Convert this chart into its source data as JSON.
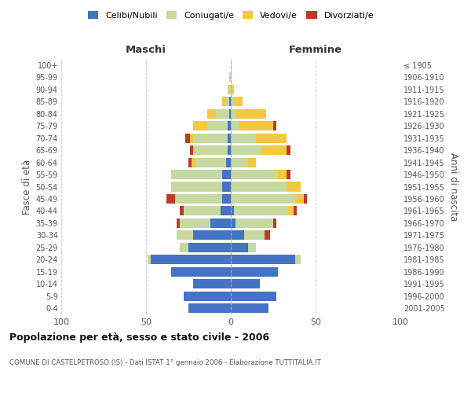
{
  "age_groups": [
    "0-4",
    "5-9",
    "10-14",
    "15-19",
    "20-24",
    "25-29",
    "30-34",
    "35-39",
    "40-44",
    "45-49",
    "50-54",
    "55-59",
    "60-64",
    "65-69",
    "70-74",
    "75-79",
    "80-84",
    "85-89",
    "90-94",
    "95-99",
    "100+"
  ],
  "birth_years": [
    "2001-2005",
    "1996-2000",
    "1991-1995",
    "1986-1990",
    "1981-1985",
    "1976-1980",
    "1971-1975",
    "1966-1970",
    "1961-1965",
    "1956-1960",
    "1951-1955",
    "1946-1950",
    "1941-1945",
    "1936-1940",
    "1931-1935",
    "1926-1930",
    "1921-1925",
    "1916-1920",
    "1911-1915",
    "1906-1910",
    "≤ 1905"
  ],
  "maschi": {
    "celibi": [
      25,
      28,
      22,
      35,
      47,
      25,
      22,
      12,
      6,
      5,
      5,
      5,
      3,
      2,
      2,
      2,
      1,
      1,
      0,
      0,
      0
    ],
    "coniugati": [
      0,
      0,
      0,
      0,
      2,
      5,
      10,
      18,
      22,
      28,
      30,
      30,
      18,
      20,
      20,
      12,
      8,
      2,
      2,
      1,
      0
    ],
    "vedovi": [
      0,
      0,
      0,
      0,
      0,
      0,
      0,
      0,
      0,
      0,
      0,
      0,
      2,
      0,
      2,
      8,
      5,
      2,
      0,
      0,
      0
    ],
    "divorziati": [
      0,
      0,
      0,
      0,
      0,
      0,
      0,
      2,
      2,
      5,
      0,
      0,
      2,
      2,
      3,
      0,
      0,
      0,
      0,
      0,
      0
    ]
  },
  "femmine": {
    "nubili": [
      22,
      27,
      17,
      28,
      38,
      10,
      8,
      3,
      2,
      0,
      0,
      0,
      0,
      0,
      0,
      0,
      0,
      0,
      0,
      0,
      0
    ],
    "coniugate": [
      0,
      0,
      0,
      0,
      3,
      5,
      12,
      22,
      32,
      38,
      33,
      28,
      10,
      18,
      15,
      5,
      3,
      2,
      0,
      0,
      0
    ],
    "vedove": [
      0,
      0,
      0,
      0,
      0,
      0,
      0,
      0,
      3,
      5,
      8,
      5,
      5,
      15,
      18,
      20,
      18,
      5,
      2,
      0,
      0
    ],
    "divorziate": [
      0,
      0,
      0,
      0,
      0,
      0,
      3,
      2,
      2,
      2,
      0,
      2,
      0,
      2,
      0,
      2,
      0,
      0,
      0,
      0,
      0
    ]
  },
  "colors": {
    "celibi": "#4472C4",
    "coniugati": "#c5d9a0",
    "vedovi": "#f5c842",
    "divorziati": "#c0392b"
  },
  "title": "Popolazione per età, sesso e stato civile - 2006",
  "subtitle": "COMUNE DI CASTELPETROSO (IS) - Dati ISTAT 1° gennaio 2006 - Elaborazione TUTTITALIA.IT",
  "ylabel_left": "Fasce di età",
  "ylabel_right": "Anni di nascita",
  "xlabel_left": "Maschi",
  "xlabel_right": "Femmine",
  "xlim": 100,
  "legend_labels": [
    "Celibi/Nubili",
    "Coniugati/e",
    "Vedovi/e",
    "Divorziati/e"
  ],
  "bg_color": "#ffffff",
  "grid_color": "#cccccc"
}
